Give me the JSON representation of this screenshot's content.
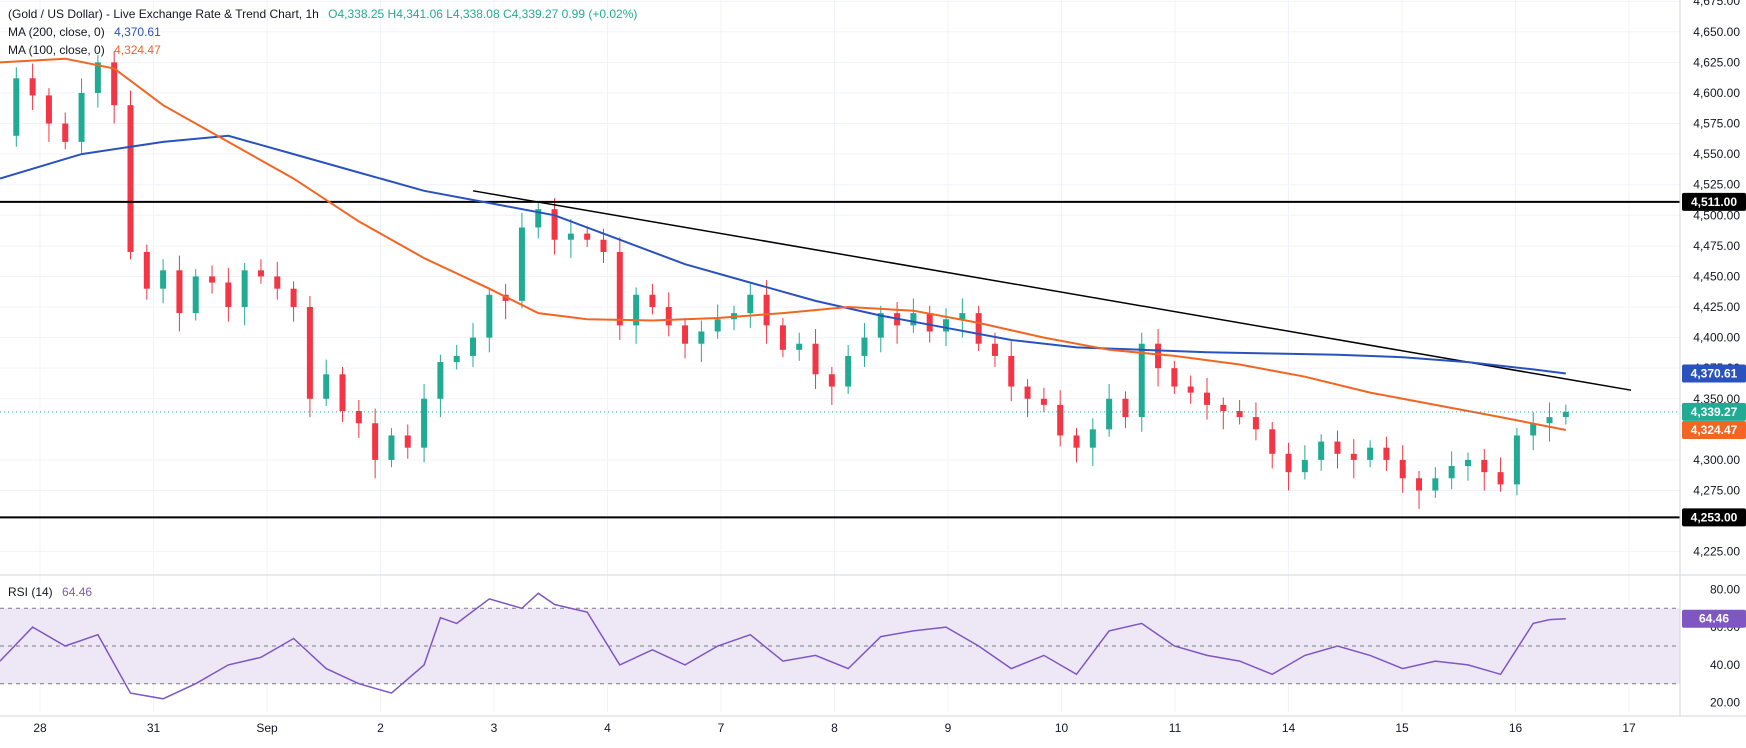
{
  "header": {
    "title": "(Gold / US Dollar) - Live Exchange Rate & Trend Chart, 1h",
    "ohlc": "O4,338.25  H4,341.06  L4,338.08  C4,339.27  0.99 (+0.02%)",
    "ma200_label": "MA (200, close, 0)",
    "ma200_value": "4,370.61",
    "ma100_label": "MA (100, close, 0)",
    "ma100_value": "4,324.47"
  },
  "rsi_legend": {
    "label": "RSI (14)",
    "value": "64.46"
  },
  "colors": {
    "bull": "#22ab94",
    "bear": "#f23645",
    "ma200": "#2a52be",
    "ma100": "#f26522",
    "rsi": "#7e57c2",
    "rsi_band": "#ede7f6",
    "grid": "#f0f3fa",
    "axis_text": "#131722"
  },
  "chart_data": [
    {
      "type": "candlestick",
      "title": "(Gold / US Dollar) - Live Exchange Rate & Trend Chart, 1h",
      "x_axis_labels": [
        "28",
        "31",
        "Sep",
        "2",
        "3",
        "4",
        "7",
        "8",
        "9",
        "10",
        "11",
        "14",
        "15",
        "16",
        "17"
      ],
      "y_axis_ticks": [
        "4,675.00",
        "4,650.00",
        "4,625.00",
        "4,600.00",
        "4,575.00",
        "4,550.00",
        "4,525.00",
        "4,500.00",
        "4,475.00",
        "4,450.00",
        "4,425.00",
        "4,400.00",
        "4,375.00",
        "4,350.00",
        "4,300.00",
        "4,275.00",
        "4,225.00"
      ],
      "ylim": [
        4210,
        4676
      ],
      "last_close": 4339.27,
      "close_path": [
        [
          0,
          4565
        ],
        [
          1,
          4612
        ],
        [
          2,
          4598
        ],
        [
          3,
          4575
        ],
        [
          4,
          4560
        ],
        [
          5,
          4600
        ],
        [
          6,
          4625
        ],
        [
          7,
          4590
        ],
        [
          8,
          4470
        ],
        [
          9,
          4440
        ],
        [
          10,
          4455
        ],
        [
          11,
          4420
        ],
        [
          12,
          4450
        ],
        [
          13,
          4445
        ],
        [
          14,
          4425
        ],
        [
          15,
          4455
        ],
        [
          16,
          4450
        ],
        [
          17,
          4440
        ],
        [
          18,
          4425
        ],
        [
          19,
          4350
        ],
        [
          20,
          4370
        ],
        [
          21,
          4340
        ],
        [
          22,
          4330
        ],
        [
          23,
          4300
        ],
        [
          24,
          4320
        ],
        [
          25,
          4310
        ],
        [
          26,
          4350
        ],
        [
          27,
          4380
        ],
        [
          28,
          4385
        ],
        [
          29,
          4400
        ],
        [
          30,
          4435
        ],
        [
          31,
          4430
        ],
        [
          32,
          4490
        ],
        [
          33,
          4505
        ],
        [
          34,
          4480
        ],
        [
          35,
          4485
        ],
        [
          36,
          4480
        ],
        [
          37,
          4470
        ],
        [
          38,
          4410
        ],
        [
          39,
          4435
        ],
        [
          40,
          4425
        ],
        [
          41,
          4410
        ],
        [
          42,
          4395
        ],
        [
          43,
          4405
        ],
        [
          44,
          4415
        ],
        [
          45,
          4420
        ],
        [
          46,
          4435
        ],
        [
          47,
          4410
        ],
        [
          48,
          4390
        ],
        [
          49,
          4395
        ],
        [
          50,
          4370
        ],
        [
          51,
          4360
        ],
        [
          52,
          4385
        ],
        [
          53,
          4400
        ],
        [
          54,
          4420
        ],
        [
          55,
          4410
        ],
        [
          56,
          4420
        ],
        [
          57,
          4405
        ],
        [
          58,
          4415
        ],
        [
          59,
          4420
        ],
        [
          60,
          4395
        ],
        [
          61,
          4385
        ],
        [
          62,
          4360
        ],
        [
          63,
          4350
        ],
        [
          64,
          4345
        ],
        [
          65,
          4320
        ],
        [
          66,
          4310
        ],
        [
          67,
          4325
        ],
        [
          68,
          4350
        ],
        [
          69,
          4335
        ],
        [
          70,
          4395
        ],
        [
          71,
          4375
        ],
        [
          72,
          4360
        ],
        [
          73,
          4355
        ],
        [
          74,
          4345
        ],
        [
          75,
          4340
        ],
        [
          76,
          4335
        ],
        [
          77,
          4325
        ],
        [
          78,
          4305
        ],
        [
          79,
          4290
        ],
        [
          80,
          4300
        ],
        [
          81,
          4315
        ],
        [
          82,
          4305
        ],
        [
          83,
          4300
        ],
        [
          84,
          4310
        ],
        [
          85,
          4300
        ],
        [
          86,
          4285
        ],
        [
          87,
          4275
        ],
        [
          88,
          4285
        ],
        [
          89,
          4295
        ],
        [
          90,
          4300
        ],
        [
          91,
          4290
        ],
        [
          92,
          4280
        ],
        [
          93,
          4320
        ],
        [
          94,
          4330
        ],
        [
          95,
          4335
        ],
        [
          96,
          4339.27
        ]
      ],
      "ma200": [
        [
          0,
          4530
        ],
        [
          5,
          4550
        ],
        [
          10,
          4560
        ],
        [
          14,
          4565
        ],
        [
          18,
          4550
        ],
        [
          22,
          4535
        ],
        [
          26,
          4520
        ],
        [
          30,
          4510
        ],
        [
          34,
          4500
        ],
        [
          38,
          4480
        ],
        [
          42,
          4460
        ],
        [
          46,
          4445
        ],
        [
          50,
          4430
        ],
        [
          54,
          4418
        ],
        [
          58,
          4408
        ],
        [
          62,
          4398
        ],
        [
          66,
          4392
        ],
        [
          70,
          4390
        ],
        [
          74,
          4388
        ],
        [
          78,
          4387
        ],
        [
          82,
          4386
        ],
        [
          86,
          4384
        ],
        [
          90,
          4380
        ],
        [
          94,
          4374
        ],
        [
          96,
          4370.61
        ]
      ],
      "ma100": [
        [
          0,
          4625
        ],
        [
          4,
          4628
        ],
        [
          7,
          4620
        ],
        [
          10,
          4590
        ],
        [
          14,
          4560
        ],
        [
          18,
          4530
        ],
        [
          22,
          4495
        ],
        [
          26,
          4465
        ],
        [
          30,
          4440
        ],
        [
          33,
          4420
        ],
        [
          36,
          4415
        ],
        [
          40,
          4414
        ],
        [
          44,
          4416
        ],
        [
          48,
          4420
        ],
        [
          52,
          4425
        ],
        [
          56,
          4422
        ],
        [
          60,
          4412
        ],
        [
          64,
          4400
        ],
        [
          68,
          4390
        ],
        [
          72,
          4385
        ],
        [
          76,
          4378
        ],
        [
          80,
          4368
        ],
        [
          84,
          4355
        ],
        [
          88,
          4345
        ],
        [
          92,
          4335
        ],
        [
          96,
          4324.47
        ]
      ],
      "horizontal_levels": [
        {
          "value": 4511.0,
          "label": "4,511.00"
        },
        {
          "value": 4253.0,
          "label": "4,253.00"
        }
      ],
      "trendline": [
        [
          29,
          4520
        ],
        [
          100,
          4357
        ]
      ],
      "price_tags": [
        {
          "value": 4370.61,
          "label": "4,370.61",
          "color": "#2a52be"
        },
        {
          "value": 4339.27,
          "label": "4,339.27",
          "color": "#22ab94"
        },
        {
          "value": 4324.47,
          "label": "4,324.47",
          "color": "#f26522"
        }
      ]
    },
    {
      "type": "line",
      "title": "RSI (14)",
      "y_axis_ticks": [
        "80.00",
        "60.00",
        "40.00",
        "20.00"
      ],
      "ylim": [
        15,
        85
      ],
      "band": [
        30,
        70
      ],
      "midline": 50,
      "last_value": 64.46,
      "series": [
        [
          0,
          42
        ],
        [
          2,
          60
        ],
        [
          4,
          50
        ],
        [
          6,
          56
        ],
        [
          8,
          25
        ],
        [
          10,
          22
        ],
        [
          12,
          30
        ],
        [
          14,
          40
        ],
        [
          16,
          44
        ],
        [
          18,
          54
        ],
        [
          20,
          38
        ],
        [
          22,
          30
        ],
        [
          24,
          25
        ],
        [
          26,
          40
        ],
        [
          27,
          65
        ],
        [
          28,
          62
        ],
        [
          30,
          75
        ],
        [
          32,
          70
        ],
        [
          33,
          78
        ],
        [
          34,
          72
        ],
        [
          36,
          68
        ],
        [
          38,
          40
        ],
        [
          40,
          48
        ],
        [
          42,
          40
        ],
        [
          44,
          50
        ],
        [
          46,
          56
        ],
        [
          48,
          42
        ],
        [
          50,
          45
        ],
        [
          52,
          38
        ],
        [
          54,
          55
        ],
        [
          56,
          58
        ],
        [
          58,
          60
        ],
        [
          60,
          50
        ],
        [
          62,
          38
        ],
        [
          64,
          45
        ],
        [
          66,
          35
        ],
        [
          68,
          58
        ],
        [
          70,
          62
        ],
        [
          72,
          50
        ],
        [
          74,
          45
        ],
        [
          76,
          42
        ],
        [
          78,
          35
        ],
        [
          80,
          45
        ],
        [
          82,
          50
        ],
        [
          84,
          45
        ],
        [
          86,
          38
        ],
        [
          88,
          42
        ],
        [
          90,
          40
        ],
        [
          92,
          35
        ],
        [
          94,
          62
        ],
        [
          95,
          64
        ],
        [
          96,
          64.46
        ]
      ]
    }
  ]
}
